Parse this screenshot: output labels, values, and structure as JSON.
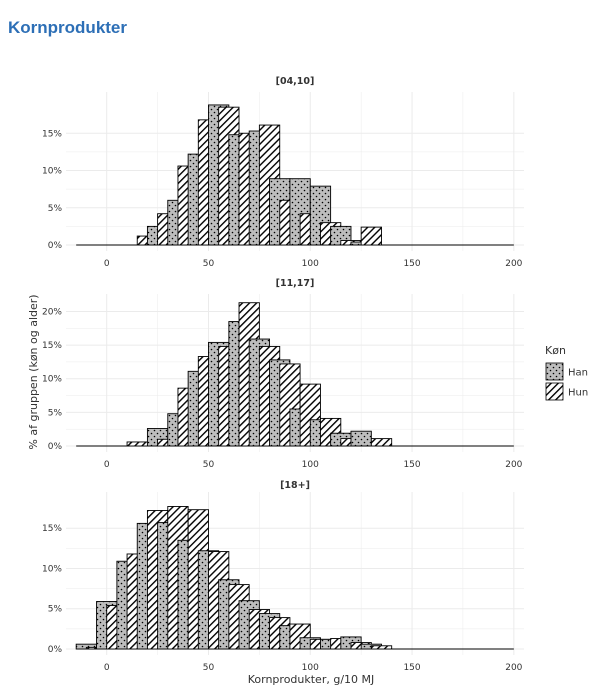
{
  "page": {
    "heading": "Kornprodukter"
  },
  "colors": {
    "heading": "#2d6fb6",
    "panel_bg": "#ffffff",
    "grid": "#ebebeb",
    "bar_fill": "#bdbdbd",
    "bar_stroke": "#000000",
    "text": "#333333"
  },
  "chart_data": {
    "type": "bar",
    "subtype": "faceted-histogram",
    "xlabel": "Kornprodukter, g/10 MJ",
    "ylabel": "% af gruppen (køn og alder)",
    "x_ticks": [
      0,
      50,
      100,
      150,
      200
    ],
    "x_tick_labels": [
      "0",
      "50",
      "100",
      "150",
      "200"
    ],
    "xlim": [
      -20,
      205
    ],
    "bin_width": 10,
    "legend": {
      "title": "Køn",
      "position": "right",
      "entries": [
        {
          "name": "Han",
          "pattern": "dots"
        },
        {
          "name": "Hun",
          "pattern": "hatch"
        }
      ]
    },
    "panels": [
      {
        "title": "[04,10]",
        "ylim": [
          0,
          20
        ],
        "y_ticks": [
          0,
          5,
          10,
          15
        ],
        "y_tick_labels": [
          "0%",
          "5%",
          "10%",
          "15%"
        ],
        "bars": [
          {
            "x": 15,
            "v": 1.2,
            "s": "Hun"
          },
          {
            "x": 20,
            "v": 2.5,
            "s": "Han"
          },
          {
            "x": 25,
            "v": 4.2,
            "s": "Hun"
          },
          {
            "x": 30,
            "v": 6.0,
            "s": "Han"
          },
          {
            "x": 35,
            "v": 10.6,
            "s": "Hun"
          },
          {
            "x": 40,
            "v": 12.2,
            "s": "Han"
          },
          {
            "x": 45,
            "v": 16.8,
            "s": "Hun"
          },
          {
            "x": 50,
            "v": 18.8,
            "s": "Han"
          },
          {
            "x": 55,
            "v": 18.5,
            "s": "Hun"
          },
          {
            "x": 60,
            "v": 14.8,
            "s": "Han"
          },
          {
            "x": 65,
            "v": 15.0,
            "s": "Hun"
          },
          {
            "x": 70,
            "v": 15.3,
            "s": "Han"
          },
          {
            "x": 75,
            "v": 16.1,
            "s": "Hun"
          },
          {
            "x": 80,
            "v": 8.9,
            "s": "Han"
          },
          {
            "x": 85,
            "v": 6.0,
            "s": "Hun"
          },
          {
            "x": 90,
            "v": 8.9,
            "s": "Han"
          },
          {
            "x": 95,
            "v": 4.2,
            "s": "Hun"
          },
          {
            "x": 100,
            "v": 7.9,
            "s": "Han"
          },
          {
            "x": 105,
            "v": 3.0,
            "s": "Hun"
          },
          {
            "x": 110,
            "v": 2.5,
            "s": "Han"
          },
          {
            "x": 115,
            "v": 0.6,
            "s": "Hun"
          },
          {
            "x": 120,
            "v": 0.4,
            "s": "Han"
          },
          {
            "x": 125,
            "v": 2.4,
            "s": "Hun"
          }
        ]
      },
      {
        "title": "[11,17]",
        "ylim": [
          0,
          22
        ],
        "y_ticks": [
          0,
          5,
          10,
          15,
          20
        ],
        "y_tick_labels": [
          "0%",
          "5%",
          "10%",
          "15%",
          "20%"
        ],
        "bars": [
          {
            "x": 10,
            "v": 0.6,
            "s": "Hun"
          },
          {
            "x": 20,
            "v": 2.6,
            "s": "Han"
          },
          {
            "x": 25,
            "v": 1.0,
            "s": "Hun"
          },
          {
            "x": 30,
            "v": 4.8,
            "s": "Han"
          },
          {
            "x": 35,
            "v": 8.6,
            "s": "Hun"
          },
          {
            "x": 40,
            "v": 11.1,
            "s": "Han"
          },
          {
            "x": 45,
            "v": 13.3,
            "s": "Hun"
          },
          {
            "x": 50,
            "v": 15.4,
            "s": "Han"
          },
          {
            "x": 55,
            "v": 14.8,
            "s": "Hun"
          },
          {
            "x": 60,
            "v": 18.5,
            "s": "Han"
          },
          {
            "x": 65,
            "v": 21.3,
            "s": "Hun"
          },
          {
            "x": 70,
            "v": 15.9,
            "s": "Han"
          },
          {
            "x": 75,
            "v": 14.8,
            "s": "Hun"
          },
          {
            "x": 80,
            "v": 12.8,
            "s": "Han"
          },
          {
            "x": 85,
            "v": 12.2,
            "s": "Hun"
          },
          {
            "x": 90,
            "v": 5.5,
            "s": "Han"
          },
          {
            "x": 95,
            "v": 9.2,
            "s": "Hun"
          },
          {
            "x": 100,
            "v": 3.9,
            "s": "Han"
          },
          {
            "x": 105,
            "v": 4.1,
            "s": "Hun"
          },
          {
            "x": 110,
            "v": 1.9,
            "s": "Han"
          },
          {
            "x": 115,
            "v": 1.1,
            "s": "Hun"
          },
          {
            "x": 120,
            "v": 2.2,
            "s": "Han"
          },
          {
            "x": 130,
            "v": 1.1,
            "s": "Hun"
          }
        ]
      },
      {
        "title": "[18+]",
        "ylim": [
          0,
          19
        ],
        "y_ticks": [
          0,
          5,
          10,
          15
        ],
        "y_tick_labels": [
          "0%",
          "5%",
          "10%",
          "15%"
        ],
        "bars": [
          {
            "x": -15,
            "v": 0.6,
            "s": "Han"
          },
          {
            "x": -10,
            "v": 0.2,
            "s": "Hun"
          },
          {
            "x": -5,
            "v": 5.9,
            "s": "Han"
          },
          {
            "x": 0,
            "v": 5.4,
            "s": "Hun"
          },
          {
            "x": 5,
            "v": 10.9,
            "s": "Han"
          },
          {
            "x": 10,
            "v": 11.8,
            "s": "Hun"
          },
          {
            "x": 15,
            "v": 15.6,
            "s": "Han"
          },
          {
            "x": 20,
            "v": 17.2,
            "s": "Hun"
          },
          {
            "x": 25,
            "v": 15.7,
            "s": "Han"
          },
          {
            "x": 30,
            "v": 17.7,
            "s": "Hun"
          },
          {
            "x": 35,
            "v": 13.5,
            "s": "Han"
          },
          {
            "x": 40,
            "v": 17.3,
            "s": "Hun"
          },
          {
            "x": 45,
            "v": 12.2,
            "s": "Han"
          },
          {
            "x": 50,
            "v": 12.1,
            "s": "Hun"
          },
          {
            "x": 55,
            "v": 8.6,
            "s": "Han"
          },
          {
            "x": 60,
            "v": 8.0,
            "s": "Hun"
          },
          {
            "x": 65,
            "v": 6.0,
            "s": "Han"
          },
          {
            "x": 70,
            "v": 4.9,
            "s": "Hun"
          },
          {
            "x": 75,
            "v": 4.4,
            "s": "Han"
          },
          {
            "x": 80,
            "v": 3.9,
            "s": "Hun"
          },
          {
            "x": 85,
            "v": 2.9,
            "s": "Han"
          },
          {
            "x": 90,
            "v": 3.1,
            "s": "Hun"
          },
          {
            "x": 95,
            "v": 1.4,
            "s": "Han"
          },
          {
            "x": 100,
            "v": 1.2,
            "s": "Hun"
          },
          {
            "x": 105,
            "v": 1.2,
            "s": "Han"
          },
          {
            "x": 110,
            "v": 1.3,
            "s": "Hun"
          },
          {
            "x": 115,
            "v": 1.5,
            "s": "Han"
          },
          {
            "x": 120,
            "v": 0.8,
            "s": "Hun"
          },
          {
            "x": 125,
            "v": 0.6,
            "s": "Han"
          },
          {
            "x": 130,
            "v": 0.4,
            "s": "Hun"
          }
        ]
      }
    ]
  }
}
